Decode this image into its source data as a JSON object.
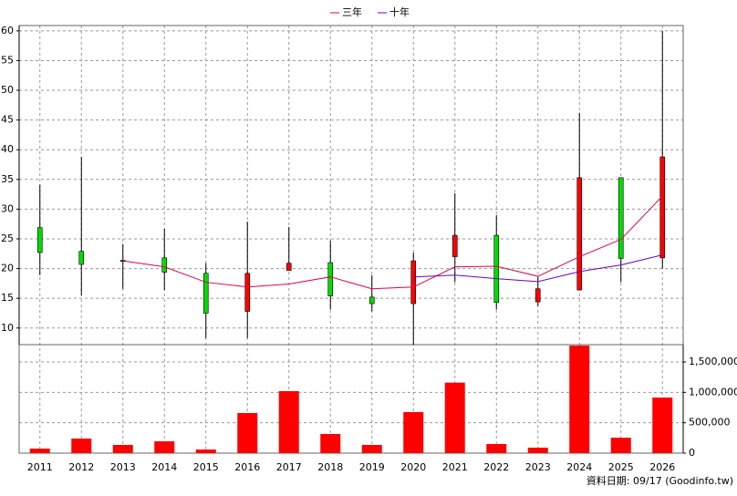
{
  "chart_data": {
    "type": "candlestick",
    "categories": [
      "2011",
      "2012",
      "2013",
      "2014",
      "2015",
      "2016",
      "2017",
      "2018",
      "2019",
      "2020",
      "2021",
      "2022",
      "2023",
      "2024",
      "2025",
      "2026"
    ],
    "open": [
      26.9,
      22.9,
      21.4,
      21.8,
      19.2,
      12.8,
      19.7,
      21.0,
      15.2,
      14.1,
      22.0,
      25.6,
      14.4,
      16.4,
      35.3,
      21.8
    ],
    "high": [
      34.1,
      38.8,
      24.1,
      26.7,
      20.9,
      27.9,
      27.0,
      24.7,
      18.9,
      22.7,
      32.7,
      29.0,
      18.6,
      46.2,
      35.3,
      60.0
    ],
    "low": [
      18.9,
      15.5,
      16.6,
      16.4,
      8.3,
      8.3,
      19.7,
      13.1,
      12.8,
      7.2,
      17.7,
      13.1,
      13.7,
      16.4,
      17.7,
      20.0
    ],
    "close": [
      22.7,
      20.7,
      21.2,
      19.4,
      12.5,
      19.2,
      20.9,
      15.4,
      14.1,
      21.3,
      25.6,
      14.3,
      16.6,
      35.3,
      21.7,
      38.8
    ],
    "up_color": "#ff0000",
    "down_color": "#00dd00",
    "series": [
      {
        "name": "三年",
        "color": "#e8004a",
        "values": [
          null,
          null,
          21.3,
          20.3,
          17.7,
          16.9,
          17.4,
          18.6,
          16.6,
          16.9,
          20.3,
          20.4,
          18.7,
          22.0,
          24.9,
          32.2
        ]
      },
      {
        "name": "十年",
        "color": "#6a00c8",
        "values": [
          null,
          null,
          null,
          null,
          null,
          null,
          null,
          null,
          null,
          18.6,
          18.9,
          18.3,
          17.8,
          19.5,
          20.6,
          22.3
        ]
      }
    ],
    "ylim": [
      7.2,
      60.9
    ],
    "yticks": [
      10,
      15,
      20,
      25,
      30,
      35,
      40,
      45,
      50,
      55,
      60
    ],
    "grid": true,
    "volume": {
      "color": "#ff0000",
      "values": [
        75000,
        240000,
        135000,
        195000,
        60000,
        660000,
        1020000,
        315000,
        135000,
        675000,
        1160000,
        150000,
        90000,
        1770000,
        255000,
        915000
      ],
      "ylim": [
        0,
        1785000
      ],
      "yticks": [
        0,
        {
          "value": 500000,
          "label": "500,000"
        },
        {
          "value": 1000000,
          "label": "1,000,000"
        },
        {
          "value": 1500000,
          "label": "1,500,000"
        }
      ]
    },
    "footer": "資料日期: 09/17 (Goodinfo.tw)"
  }
}
